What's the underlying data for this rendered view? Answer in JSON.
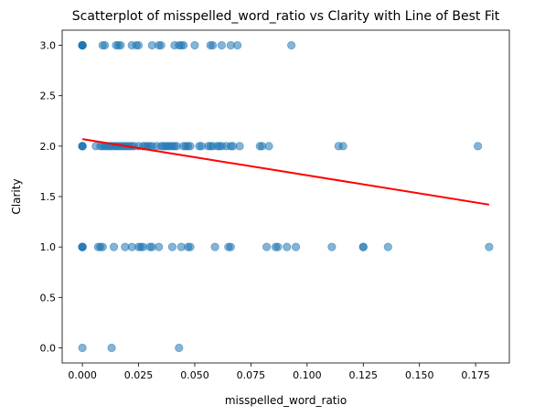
{
  "chart_data": {
    "type": "scatter",
    "title": "Scatterplot of misspelled_word_ratio vs Clarity with Line of Best Fit",
    "xlabel": "misspelled_word_ratio",
    "ylabel": "Clarity",
    "xlim": [
      -0.009,
      0.19
    ],
    "ylim": [
      -0.15,
      3.15
    ],
    "xticks": [
      0.0,
      0.025,
      0.05,
      0.075,
      0.1,
      0.125,
      0.15,
      0.175
    ],
    "xtick_labels": [
      "0.000",
      "0.025",
      "0.050",
      "0.075",
      "0.100",
      "0.125",
      "0.150",
      "0.175"
    ],
    "yticks": [
      0.0,
      0.5,
      1.0,
      1.5,
      2.0,
      2.5,
      3.0
    ],
    "ytick_labels": [
      "0.0",
      "0.5",
      "1.0",
      "1.5",
      "2.0",
      "2.5",
      "3.0"
    ],
    "grid": false,
    "point_color": "#1f77b4",
    "point_alpha": 0.55,
    "line_color": "#ff0000",
    "series": [
      {
        "kind": "points",
        "points": [
          [
            0.0,
            3.0
          ],
          [
            0.0,
            3.0
          ],
          [
            0.0,
            3.0
          ],
          [
            0.0,
            3.0
          ],
          [
            0.0,
            3.0
          ],
          [
            0.0,
            3.0
          ],
          [
            0.009,
            3.0
          ],
          [
            0.01,
            3.0
          ],
          [
            0.015,
            3.0
          ],
          [
            0.016,
            3.0
          ],
          [
            0.017,
            3.0
          ],
          [
            0.022,
            3.0
          ],
          [
            0.024,
            3.0
          ],
          [
            0.025,
            3.0
          ],
          [
            0.031,
            3.0
          ],
          [
            0.034,
            3.0
          ],
          [
            0.035,
            3.0
          ],
          [
            0.041,
            3.0
          ],
          [
            0.043,
            3.0
          ],
          [
            0.044,
            3.0
          ],
          [
            0.045,
            3.0
          ],
          [
            0.05,
            3.0
          ],
          [
            0.057,
            3.0
          ],
          [
            0.058,
            3.0
          ],
          [
            0.062,
            3.0
          ],
          [
            0.066,
            3.0
          ],
          [
            0.069,
            3.0
          ],
          [
            0.093,
            3.0
          ],
          [
            0.0,
            2.0
          ],
          [
            0.0,
            2.0
          ],
          [
            0.0,
            2.0
          ],
          [
            0.0,
            2.0
          ],
          [
            0.006,
            2.0
          ],
          [
            0.008,
            2.0
          ],
          [
            0.009,
            2.0
          ],
          [
            0.01,
            2.0
          ],
          [
            0.011,
            2.0
          ],
          [
            0.012,
            2.0
          ],
          [
            0.013,
            2.0
          ],
          [
            0.014,
            2.0
          ],
          [
            0.015,
            2.0
          ],
          [
            0.016,
            2.0
          ],
          [
            0.017,
            2.0
          ],
          [
            0.018,
            2.0
          ],
          [
            0.019,
            2.0
          ],
          [
            0.02,
            2.0
          ],
          [
            0.021,
            2.0
          ],
          [
            0.022,
            2.0
          ],
          [
            0.023,
            2.0
          ],
          [
            0.025,
            2.0
          ],
          [
            0.027,
            2.0
          ],
          [
            0.028,
            2.0
          ],
          [
            0.029,
            2.0
          ],
          [
            0.03,
            2.0
          ],
          [
            0.031,
            2.0
          ],
          [
            0.033,
            2.0
          ],
          [
            0.035,
            2.0
          ],
          [
            0.036,
            2.0
          ],
          [
            0.037,
            2.0
          ],
          [
            0.038,
            2.0
          ],
          [
            0.039,
            2.0
          ],
          [
            0.04,
            2.0
          ],
          [
            0.041,
            2.0
          ],
          [
            0.042,
            2.0
          ],
          [
            0.045,
            2.0
          ],
          [
            0.046,
            2.0
          ],
          [
            0.047,
            2.0
          ],
          [
            0.048,
            2.0
          ],
          [
            0.052,
            2.0
          ],
          [
            0.053,
            2.0
          ],
          [
            0.056,
            2.0
          ],
          [
            0.057,
            2.0
          ],
          [
            0.058,
            2.0
          ],
          [
            0.06,
            2.0
          ],
          [
            0.061,
            2.0
          ],
          [
            0.062,
            2.0
          ],
          [
            0.064,
            2.0
          ],
          [
            0.066,
            2.0
          ],
          [
            0.067,
            2.0
          ],
          [
            0.07,
            2.0
          ],
          [
            0.079,
            2.0
          ],
          [
            0.08,
            2.0
          ],
          [
            0.083,
            2.0
          ],
          [
            0.114,
            2.0
          ],
          [
            0.116,
            2.0
          ],
          [
            0.176,
            2.0
          ],
          [
            0.0,
            1.0
          ],
          [
            0.0,
            1.0
          ],
          [
            0.0,
            1.0
          ],
          [
            0.0,
            1.0
          ],
          [
            0.007,
            1.0
          ],
          [
            0.008,
            1.0
          ],
          [
            0.009,
            1.0
          ],
          [
            0.014,
            1.0
          ],
          [
            0.019,
            1.0
          ],
          [
            0.022,
            1.0
          ],
          [
            0.025,
            1.0
          ],
          [
            0.026,
            1.0
          ],
          [
            0.027,
            1.0
          ],
          [
            0.03,
            1.0
          ],
          [
            0.031,
            1.0
          ],
          [
            0.034,
            1.0
          ],
          [
            0.04,
            1.0
          ],
          [
            0.044,
            1.0
          ],
          [
            0.047,
            1.0
          ],
          [
            0.048,
            1.0
          ],
          [
            0.059,
            1.0
          ],
          [
            0.065,
            1.0
          ],
          [
            0.066,
            1.0
          ],
          [
            0.082,
            1.0
          ],
          [
            0.086,
            1.0
          ],
          [
            0.087,
            1.0
          ],
          [
            0.091,
            1.0
          ],
          [
            0.095,
            1.0
          ],
          [
            0.111,
            1.0
          ],
          [
            0.125,
            1.0
          ],
          [
            0.125,
            1.0
          ],
          [
            0.136,
            1.0
          ],
          [
            0.181,
            1.0
          ],
          [
            0.0,
            0.0
          ],
          [
            0.013,
            0.0
          ],
          [
            0.043,
            0.0
          ]
        ]
      },
      {
        "kind": "line",
        "points": [
          [
            0.0,
            2.07
          ],
          [
            0.181,
            1.42
          ]
        ]
      }
    ]
  }
}
